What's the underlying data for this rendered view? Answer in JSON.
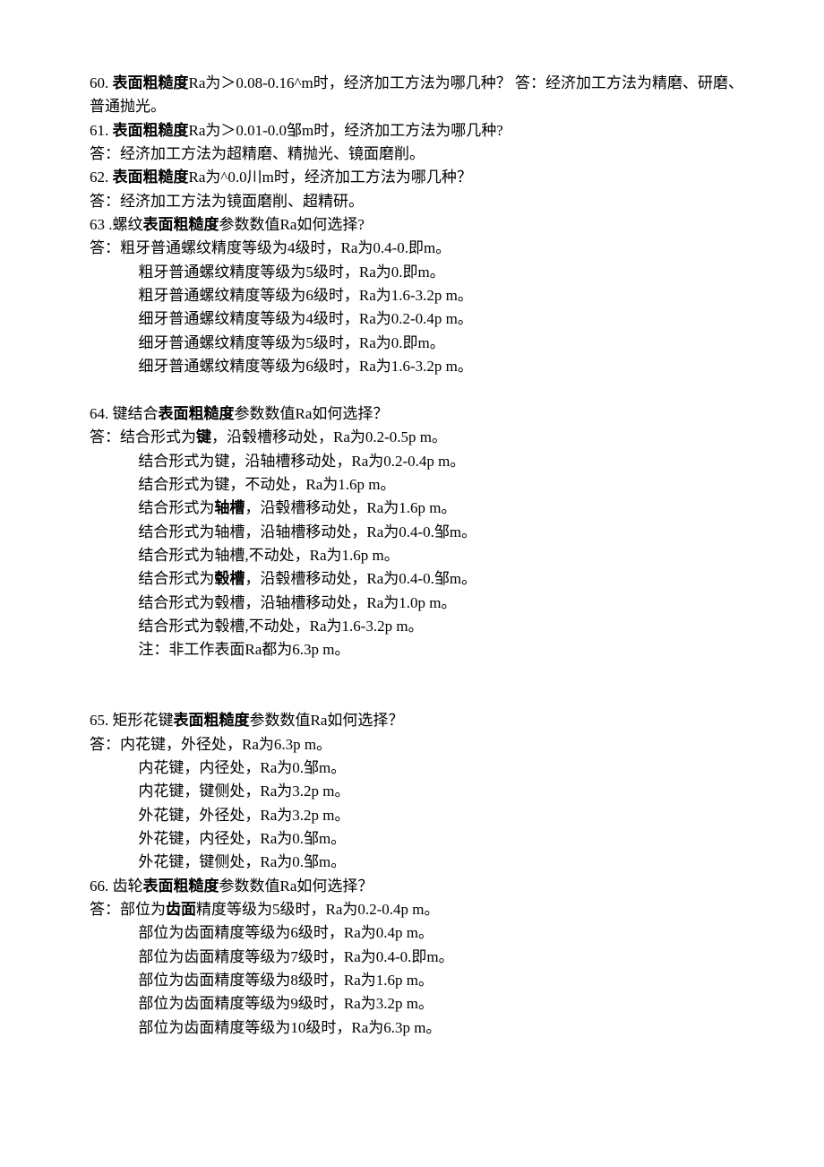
{
  "q60_prefix": "60. ",
  "q60_bold": "表面粗糙度",
  "q60_rest": "Ra为＞0.08-0.16^m时，经济加工方法为哪几种？  答：经济加工方法为精磨、研磨、普通抛光。",
  "q61_prefix": "61. ",
  "q61_bold": "表面粗糙度",
  "q61_rest": "Ra为＞0.01-0.0邹m时，经济加工方法为哪几种?",
  "a61": "答：经济加工方法为超精磨、精抛光、镜面磨削。",
  "q62_prefix": "62. ",
  "q62_bold": "表面粗糙度",
  "q62_rest": "Ra为^0.0川m时，经济加工方法为哪几种？",
  "a62": "答：经济加工方法为镜面磨削、超精研。",
  "q63_prefix": "63 .螺纹",
  "q63_bold": "表面粗糙度",
  "q63_rest": "参数数值Ra如何选择?",
  "a63_l1": "答：粗牙普通螺纹精度等级为4级时，Ra为0.4-0.即m。",
  "a63_l2": "粗牙普通螺纹精度等级为5级时，Ra为0.即m。",
  "a63_l3": "粗牙普通螺纹精度等级为6级时，Ra为1.6-3.2p m。",
  "a63_l4": "细牙普通螺纹精度等级为4级时，Ra为0.2-0.4p m。",
  "a63_l5": "细牙普通螺纹精度等级为5级时，Ra为0.即m。",
  "a63_l6": "细牙普通螺纹精度等级为6级时，Ra为1.6-3.2p m。",
  "q64_prefix": "64.  键结合",
  "q64_bold": "表面粗糙度",
  "q64_rest": "参数数值Ra如何选择？",
  "a64_l1a": "答：结合形式为",
  "a64_l1b": "键",
  "a64_l1c": "，沿毂槽移动处，Ra为0.2-0.5p m。",
  "a64_l2": "结合形式为键，沿轴槽移动处，Ra为0.2-0.4p m。",
  "a64_l3": "结合形式为键，不动处，Ra为1.6p m。",
  "a64_l4a": "结合形式为",
  "a64_l4b": "轴槽",
  "a64_l4c": "，沿毂槽移动处，Ra为1.6p m。",
  "a64_l5": "结合形式为轴槽，沿轴槽移动处，Ra为0.4-0.邹m。",
  "a64_l6": "结合形式为轴槽,不动处，Ra为1.6p m。",
  "a64_l7a": "结合形式为",
  "a64_l7b": "毂槽",
  "a64_l7c": "，沿毂槽移动处，Ra为0.4-0.邹m。",
  "a64_l8": "结合形式为毂槽，沿轴槽移动处，Ra为1.0p m。",
  "a64_l9": "结合形式为毂槽,不动处，Ra为1.6-3.2p m。",
  "a64_note": "注：非工作表面Ra都为6.3p m。",
  "q65_prefix": "65.  矩形花键",
  "q65_bold": "表面粗糙度",
  "q65_rest": "参数数值Ra如何选择？",
  "a65_l1": "答：内花键，外径处，Ra为6.3p m。",
  "a65_l2": "内花键，内径处，Ra为0.邹m。",
  "a65_l3": "内花键，键侧处，Ra为3.2p m。",
  "a65_l4": "外花键，外径处，Ra为3.2p m。",
  "a65_l5": "外花键，内径处，Ra为0.邹m。",
  "a65_l6": "外花键，键侧处，Ra为0.邹m。",
  "q66_prefix": "66.  齿轮",
  "q66_bold": "表面粗糙度",
  "q66_rest": "参数数值Ra如何选择？",
  "a66_l1a": "答：部位为",
  "a66_l1b": "齿面",
  "a66_l1c": "精度等级为5级时，Ra为0.2-0.4p m。",
  "a66_l2": "部位为齿面精度等级为6级时，Ra为0.4p m。",
  "a66_l3": "部位为齿面精度等级为7级时，Ra为0.4-0.即m。",
  "a66_l4": "部位为齿面精度等级为8级时，Ra为1.6p m。",
  "a66_l5": "部位为齿面精度等级为9级时，Ra为3.2p m。",
  "a66_l6": "部位为齿面精度等级为10级时，Ra为6.3p m。"
}
